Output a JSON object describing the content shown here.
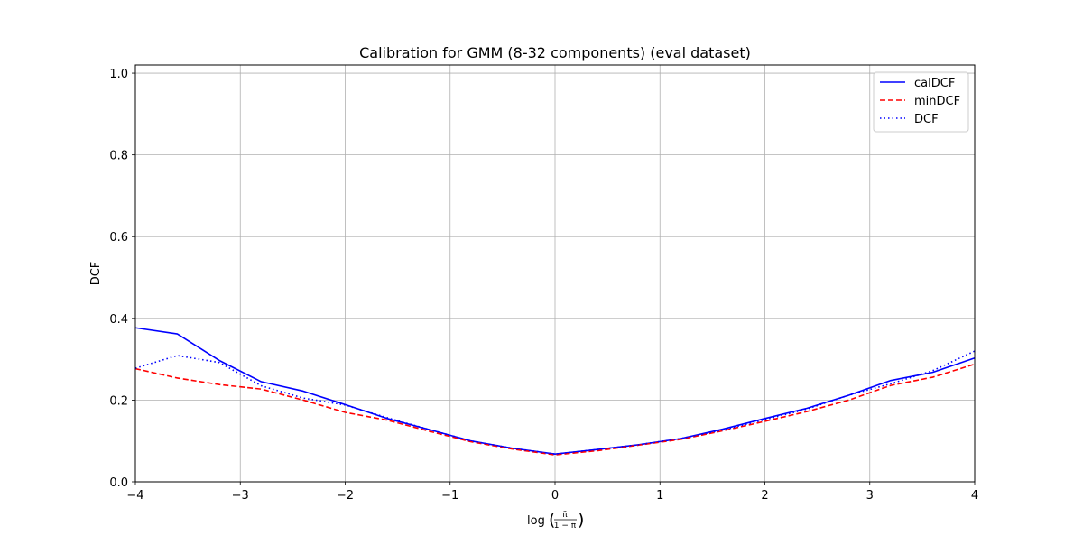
{
  "chart_data": {
    "type": "line",
    "title": "Calibration for GMM (8-32 components) (eval dataset)",
    "xlabel": "log(π̃/(1−π̃))",
    "xlabel_parts": {
      "prefix": "log",
      "numerator": "π̃",
      "denominator": "1 − π̃"
    },
    "ylabel": "DCF",
    "xlim": [
      -4,
      4
    ],
    "ylim": [
      0,
      1.02
    ],
    "xticks": [
      -4,
      -3,
      -2,
      -1,
      0,
      1,
      2,
      3,
      4
    ],
    "xtick_labels": [
      "−4",
      "−3",
      "−2",
      "−1",
      "0",
      "1",
      "2",
      "3",
      "4"
    ],
    "yticks": [
      0,
      0.2,
      0.4,
      0.6,
      0.8,
      1.0
    ],
    "ytick_labels": [
      "0.0",
      "0.2",
      "0.4",
      "0.6",
      "0.8",
      "1.0"
    ],
    "grid": true,
    "legend_position": "top-right",
    "x": [
      -4.0,
      -3.6,
      -3.2,
      -2.8,
      -2.4,
      -2.0,
      -1.6,
      -1.2,
      -0.8,
      -0.4,
      0.0,
      0.4,
      0.8,
      1.2,
      1.6,
      2.0,
      2.4,
      2.8,
      3.2,
      3.6,
      4.0
    ],
    "series": [
      {
        "name": "calDCF",
        "color": "#0000ff",
        "style": "solid",
        "values": [
          0.377,
          0.362,
          0.297,
          0.245,
          0.222,
          0.189,
          0.155,
          0.128,
          0.1,
          0.082,
          0.068,
          0.079,
          0.091,
          0.106,
          0.129,
          0.155,
          0.18,
          0.212,
          0.248,
          0.268,
          0.303
        ]
      },
      {
        "name": "minDCF",
        "color": "#ff0000",
        "style": "dashed",
        "values": [
          0.277,
          0.254,
          0.238,
          0.227,
          0.2,
          0.17,
          0.151,
          0.124,
          0.098,
          0.08,
          0.066,
          0.076,
          0.09,
          0.104,
          0.125,
          0.148,
          0.172,
          0.2,
          0.236,
          0.256,
          0.288
        ]
      },
      {
        "name": "DCF",
        "color": "#0000ff",
        "style": "dotted",
        "values": [
          0.278,
          0.309,
          0.292,
          0.235,
          0.205,
          0.188,
          0.157,
          0.128,
          0.1,
          0.082,
          0.068,
          0.079,
          0.091,
          0.106,
          0.127,
          0.152,
          0.178,
          0.212,
          0.24,
          0.272,
          0.32
        ]
      }
    ]
  }
}
